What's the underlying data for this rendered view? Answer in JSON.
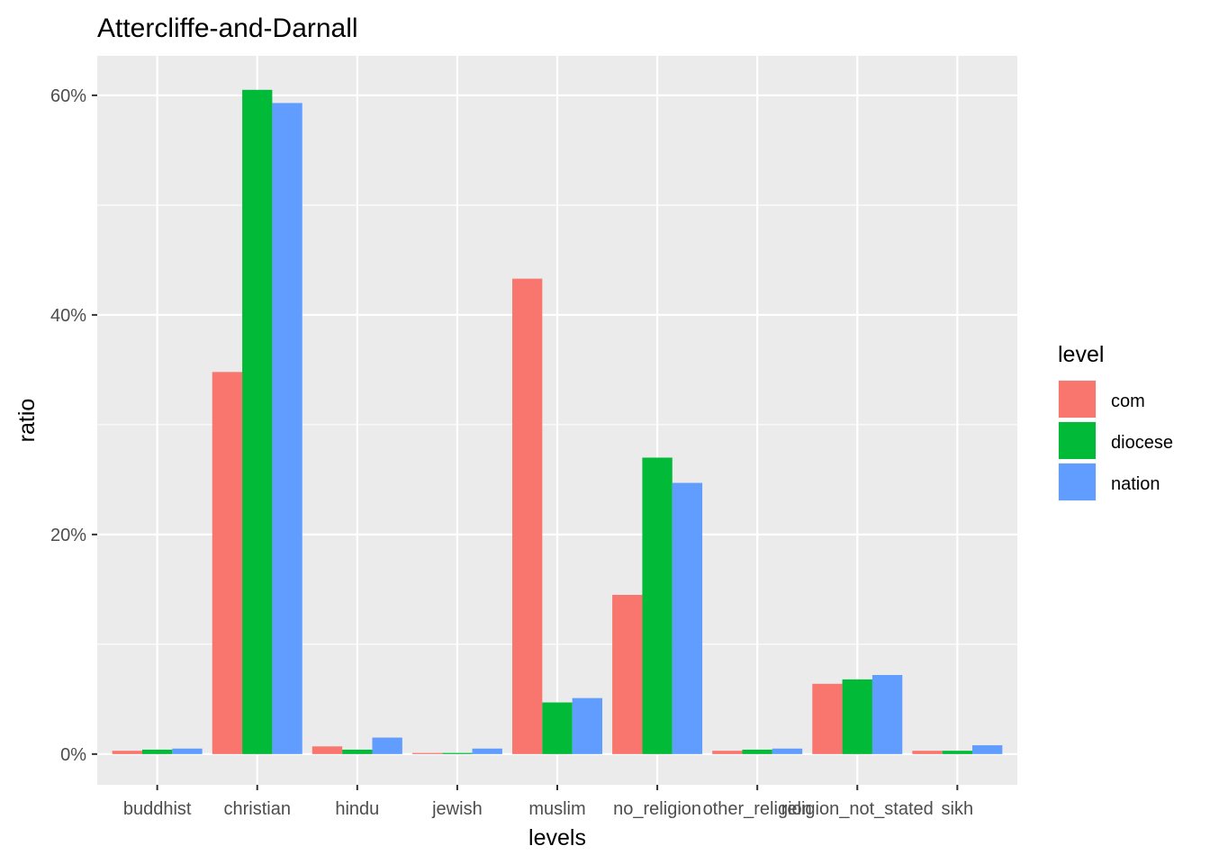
{
  "chart_data": {
    "type": "bar",
    "title": "Attercliffe-and-Darnall",
    "xlabel": "levels",
    "ylabel": "ratio",
    "categories": [
      "buddhist",
      "christian",
      "hindu",
      "jewish",
      "muslim",
      "no_religion",
      "other_religion",
      "religion_not_stated",
      "sikh"
    ],
    "series": [
      {
        "name": "com",
        "color": "#F8766D",
        "values": [
          0.3,
          34.8,
          0.7,
          0.1,
          43.3,
          14.5,
          0.3,
          6.4,
          0.3
        ]
      },
      {
        "name": "diocese",
        "color": "#00BA38",
        "values": [
          0.4,
          60.5,
          0.4,
          0.1,
          4.7,
          27.0,
          0.4,
          6.8,
          0.3
        ]
      },
      {
        "name": "nation",
        "color": "#619CFF",
        "values": [
          0.5,
          59.3,
          1.5,
          0.5,
          5.1,
          24.7,
          0.5,
          7.2,
          0.8
        ]
      }
    ],
    "ylim": [
      -2.8,
      63.6
    ],
    "yticks": [
      0,
      20,
      40,
      60
    ],
    "ytick_labels": [
      "0%",
      "20%",
      "40%",
      "60%"
    ],
    "grid": true,
    "legend": {
      "title": "level",
      "position": "right"
    }
  }
}
